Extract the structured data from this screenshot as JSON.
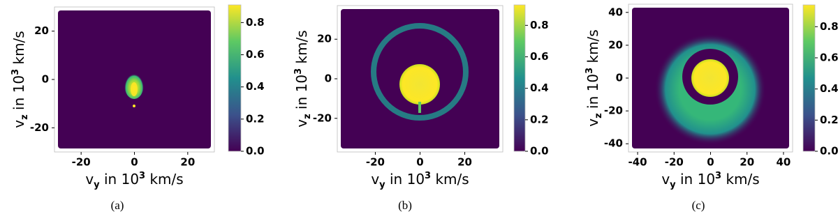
{
  "chart_data": [
    {
      "type": "heatmap",
      "caption": "(a)",
      "x_label": {
        "base": "v",
        "sub": "y",
        "text": " in 10",
        "sup": "3",
        "unit": " km/s"
      },
      "y_label": {
        "base": "v",
        "sub": "z",
        "text": " in 10",
        "sup": "3",
        "unit": " km/s"
      },
      "xlim": [
        -30,
        30
      ],
      "xticks": [
        -20,
        0,
        20
      ],
      "ylim": [
        -30,
        30
      ],
      "yticks": [
        -20,
        0,
        20
      ],
      "clim": [
        0,
        0.91
      ],
      "cticks": [
        {
          "value": 0,
          "label": "0.0"
        },
        {
          "value": 0.2,
          "label": "0.2"
        },
        {
          "value": 0.4,
          "label": "0.4"
        },
        {
          "value": 0.6,
          "label": "0.6"
        },
        {
          "value": 0.8,
          "label": "0.8"
        }
      ]
    },
    {
      "type": "heatmap",
      "caption": "(b)",
      "x_label": {
        "base": "v",
        "sub": "y",
        "text": " in 10",
        "sup": "3",
        "unit": " km/s"
      },
      "y_label": {
        "base": "v",
        "sub": "z",
        "text": " in 10",
        "sup": "3",
        "unit": " km/s"
      },
      "xlim": [
        -37,
        37
      ],
      "xticks": [
        -20,
        0,
        20
      ],
      "ylim": [
        -37,
        37
      ],
      "yticks": [
        -20,
        0,
        20
      ],
      "clim": [
        0,
        0.93
      ],
      "cticks": [
        {
          "value": 0,
          "label": "0.0"
        },
        {
          "value": 0.2,
          "label": "0.2"
        },
        {
          "value": 0.4,
          "label": "0.4"
        },
        {
          "value": 0.6,
          "label": "0.6"
        },
        {
          "value": 0.8,
          "label": "0.8"
        }
      ]
    },
    {
      "type": "heatmap",
      "caption": "(c)",
      "x_label": {
        "base": "v",
        "sub": "y",
        "text": " in 10",
        "sup": "3",
        "unit": " km/s"
      },
      "y_label": {
        "base": "v",
        "sub": "z",
        "text": " in 10",
        "sup": "3",
        "unit": " km/s"
      },
      "xlim": [
        -45,
        45
      ],
      "xticks": [
        -40,
        -20,
        0,
        20,
        40
      ],
      "ylim": [
        -45,
        45
      ],
      "yticks": [
        -40,
        -20,
        0,
        20,
        40
      ],
      "clim": [
        0,
        0.94
      ],
      "cticks": [
        {
          "value": 0,
          "label": "0.0"
        },
        {
          "value": 0.2,
          "label": "0.2"
        },
        {
          "value": 0.4,
          "label": "0.4"
        },
        {
          "value": 0.6,
          "label": "0.6"
        },
        {
          "value": 0.8,
          "label": "0.8"
        }
      ]
    }
  ]
}
